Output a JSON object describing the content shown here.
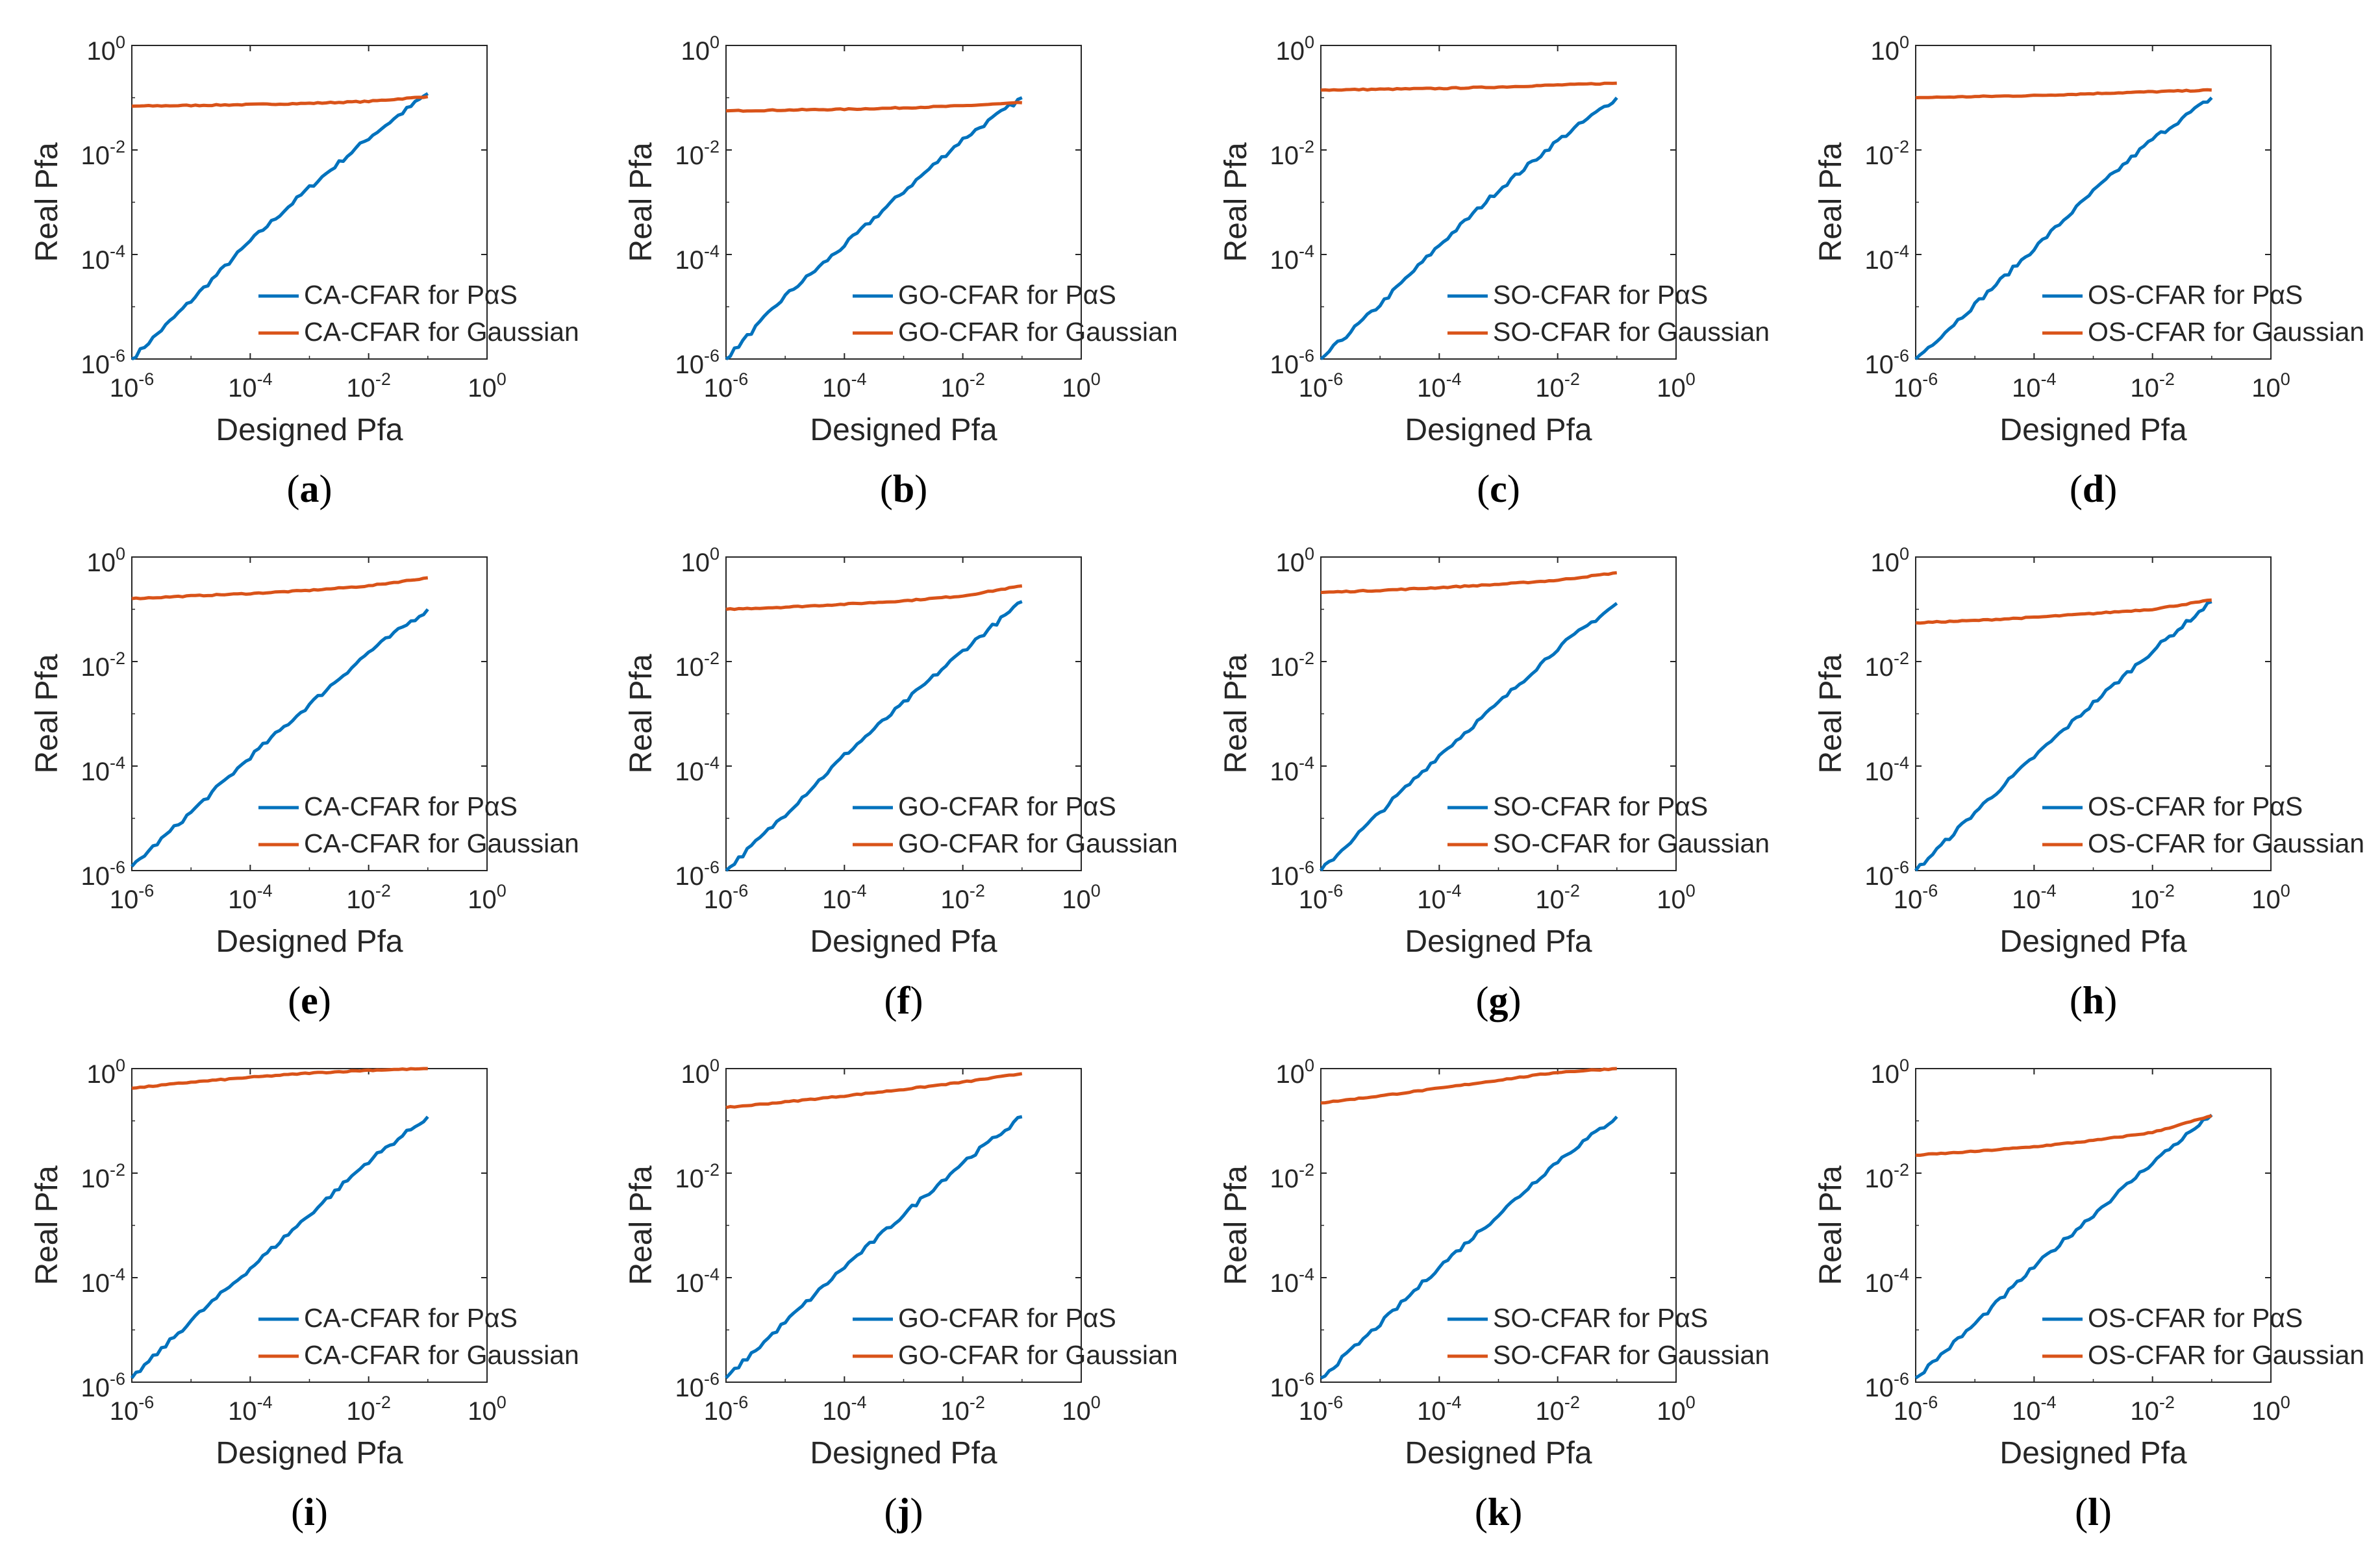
{
  "colors": {
    "pas": "#0072BD",
    "gaussian": "#D95319",
    "axis": "#262626"
  },
  "axes": {
    "xlabel": "Designed Pfa",
    "ylabel": "Real Pfa",
    "xscale": "log",
    "yscale": "log",
    "xlim": [
      1e-06,
      1
    ],
    "ylim": [
      1e-06,
      1
    ],
    "tick_base": "10",
    "x_tick_exponents": [
      "-6",
      "-4",
      "-2",
      "0"
    ],
    "y_tick_exponents": [
      "-6",
      "-4",
      "-2",
      "0"
    ]
  },
  "chart_data": [
    {
      "type": "line",
      "caption": "a",
      "legend_location": "bottom-right",
      "series": [
        {
          "name": "CA-CFAR for PαS",
          "x": [
            1e-06,
            1e-05,
            0.0001,
            0.001,
            0.01,
            0.1
          ],
          "y": [
            1e-06,
            1.3e-05,
            0.00018,
            0.0019,
            0.017,
            0.12
          ]
        },
        {
          "name": "CA-CFAR for Gaussian",
          "x": [
            1e-06,
            1e-05,
            0.0001,
            0.001,
            0.01,
            0.1
          ],
          "y": [
            0.069,
            0.071,
            0.074,
            0.078,
            0.085,
            0.105
          ]
        }
      ]
    },
    {
      "type": "line",
      "caption": "b",
      "legend_location": "bottom-right",
      "series": [
        {
          "name": "GO-CFAR for PαS",
          "x": [
            1e-06,
            1e-05,
            0.0001,
            0.001,
            0.01,
            0.1
          ],
          "y": [
            1e-06,
            1.6e-05,
            0.00015,
            0.0016,
            0.016,
            0.1
          ]
        },
        {
          "name": "GO-CFAR for Gaussian",
          "x": [
            1e-06,
            1e-05,
            0.0001,
            0.001,
            0.01,
            0.1
          ],
          "y": [
            0.056,
            0.058,
            0.06,
            0.064,
            0.07,
            0.08
          ]
        }
      ]
    },
    {
      "type": "line",
      "caption": "c",
      "legend_location": "bottom-right",
      "series": [
        {
          "name": "SO-CFAR for PαS",
          "x": [
            1e-06,
            1e-05,
            0.0001,
            0.001,
            0.01,
            0.1
          ],
          "y": [
            1e-06,
            1.1e-05,
            0.00015,
            0.0017,
            0.015,
            0.1
          ]
        },
        {
          "name": "SO-CFAR for Gaussian",
          "x": [
            1e-06,
            1e-05,
            0.0001,
            0.001,
            0.01,
            0.1
          ],
          "y": [
            0.14,
            0.145,
            0.15,
            0.16,
            0.175,
            0.19
          ]
        }
      ]
    },
    {
      "type": "line",
      "caption": "d",
      "legend_location": "bottom-right",
      "series": [
        {
          "name": "OS-CFAR for PαS",
          "x": [
            1e-06,
            1e-05,
            0.0001,
            0.001,
            0.01,
            0.1
          ],
          "y": [
            1e-06,
            1.1e-05,
            0.00013,
            0.0016,
            0.016,
            0.1
          ]
        },
        {
          "name": "OS-CFAR for Gaussian",
          "x": [
            1e-06,
            1e-05,
            0.0001,
            0.001,
            0.01,
            0.1
          ],
          "y": [
            0.1,
            0.105,
            0.11,
            0.12,
            0.13,
            0.14
          ]
        }
      ]
    },
    {
      "type": "line",
      "caption": "e",
      "legend_location": "bottom-right",
      "series": [
        {
          "name": "CA-CFAR for PαS",
          "x": [
            1e-06,
            1e-05,
            0.0001,
            0.001,
            0.01,
            0.1
          ],
          "y": [
            1.2e-06,
            1.3e-05,
            0.00015,
            0.0015,
            0.015,
            0.1
          ]
        },
        {
          "name": "CA-CFAR for Gaussian",
          "x": [
            1e-06,
            1e-05,
            0.0001,
            0.001,
            0.01,
            0.1
          ],
          "y": [
            0.16,
            0.18,
            0.2,
            0.23,
            0.28,
            0.4
          ]
        }
      ]
    },
    {
      "type": "line",
      "caption": "f",
      "legend_location": "bottom-right",
      "series": [
        {
          "name": "GO-CFAR for PαS",
          "x": [
            1e-06,
            1e-05,
            0.0001,
            0.001,
            0.01,
            0.1
          ],
          "y": [
            1e-06,
            1.2e-05,
            0.00016,
            0.0016,
            0.016,
            0.14
          ]
        },
        {
          "name": "GO-CFAR for Gaussian",
          "x": [
            1e-06,
            1e-05,
            0.0001,
            0.001,
            0.01,
            0.1
          ],
          "y": [
            0.1,
            0.11,
            0.125,
            0.145,
            0.18,
            0.28
          ]
        }
      ]
    },
    {
      "type": "line",
      "caption": "g",
      "legend_location": "bottom-right",
      "series": [
        {
          "name": "SO-CFAR for PαS",
          "x": [
            1e-06,
            1e-05,
            0.0001,
            0.001,
            0.01,
            0.1
          ],
          "y": [
            1e-06,
            1.3e-05,
            0.00016,
            0.0016,
            0.018,
            0.13
          ]
        },
        {
          "name": "SO-CFAR for Gaussian",
          "x": [
            1e-06,
            1e-05,
            0.0001,
            0.001,
            0.01,
            0.1
          ],
          "y": [
            0.21,
            0.23,
            0.26,
            0.3,
            0.36,
            0.5
          ]
        }
      ]
    },
    {
      "type": "line",
      "caption": "h",
      "legend_location": "bottom-right",
      "series": [
        {
          "name": "OS-CFAR for PαS",
          "x": [
            1e-06,
            1e-05,
            0.0001,
            0.001,
            0.01,
            0.1
          ],
          "y": [
            1e-06,
            1.3e-05,
            0.00015,
            0.0016,
            0.016,
            0.14
          ]
        },
        {
          "name": "OS-CFAR for Gaussian",
          "x": [
            1e-06,
            1e-05,
            0.0001,
            0.001,
            0.01,
            0.1
          ],
          "y": [
            0.055,
            0.061,
            0.07,
            0.083,
            0.1,
            0.15
          ]
        }
      ]
    },
    {
      "type": "line",
      "caption": "i",
      "legend_location": "bottom-right",
      "series": [
        {
          "name": "CA-CFAR for PαS",
          "x": [
            1e-06,
            1e-05,
            0.0001,
            0.001,
            0.01,
            0.1
          ],
          "y": [
            1.2e-06,
            1.5e-05,
            0.00015,
            0.0016,
            0.017,
            0.12
          ]
        },
        {
          "name": "CA-CFAR for Gaussian",
          "x": [
            1e-06,
            1e-05,
            0.0001,
            0.001,
            0.01,
            0.1
          ],
          "y": [
            0.42,
            0.55,
            0.68,
            0.82,
            0.93,
            1.0
          ]
        }
      ]
    },
    {
      "type": "line",
      "caption": "j",
      "legend_location": "bottom-right",
      "series": [
        {
          "name": "GO-CFAR for PαS",
          "x": [
            1e-06,
            1e-05,
            0.0001,
            0.001,
            0.01,
            0.1
          ],
          "y": [
            1.2e-06,
            1.4e-05,
            0.00016,
            0.0016,
            0.016,
            0.12
          ]
        },
        {
          "name": "GO-CFAR for Gaussian",
          "x": [
            1e-06,
            1e-05,
            0.0001,
            0.001,
            0.01,
            0.1
          ],
          "y": [
            0.18,
            0.23,
            0.3,
            0.4,
            0.55,
            0.8
          ]
        }
      ]
    },
    {
      "type": "line",
      "caption": "k",
      "legend_location": "bottom-right",
      "series": [
        {
          "name": "SO-CFAR for PαS",
          "x": [
            1e-06,
            1e-05,
            0.0001,
            0.001,
            0.01,
            0.1
          ],
          "y": [
            1.2e-06,
            1.3e-05,
            0.00016,
            0.0016,
            0.017,
            0.12
          ]
        },
        {
          "name": "SO-CFAR for Gaussian",
          "x": [
            1e-06,
            1e-05,
            0.0001,
            0.001,
            0.01,
            0.1
          ],
          "y": [
            0.22,
            0.3,
            0.42,
            0.6,
            0.85,
            1.0
          ]
        }
      ]
    },
    {
      "type": "line",
      "caption": "l",
      "legend_location": "bottom-right",
      "series": [
        {
          "name": "OS-CFAR for PαS",
          "x": [
            1e-06,
            1e-05,
            0.0001,
            0.001,
            0.01,
            0.1
          ],
          "y": [
            1.2e-06,
            1.3e-05,
            0.00016,
            0.0016,
            0.016,
            0.13
          ]
        },
        {
          "name": "OS-CFAR for Gaussian",
          "x": [
            1e-06,
            1e-05,
            0.0001,
            0.001,
            0.01,
            0.1
          ],
          "y": [
            0.022,
            0.026,
            0.032,
            0.042,
            0.06,
            0.125
          ]
        }
      ]
    }
  ]
}
